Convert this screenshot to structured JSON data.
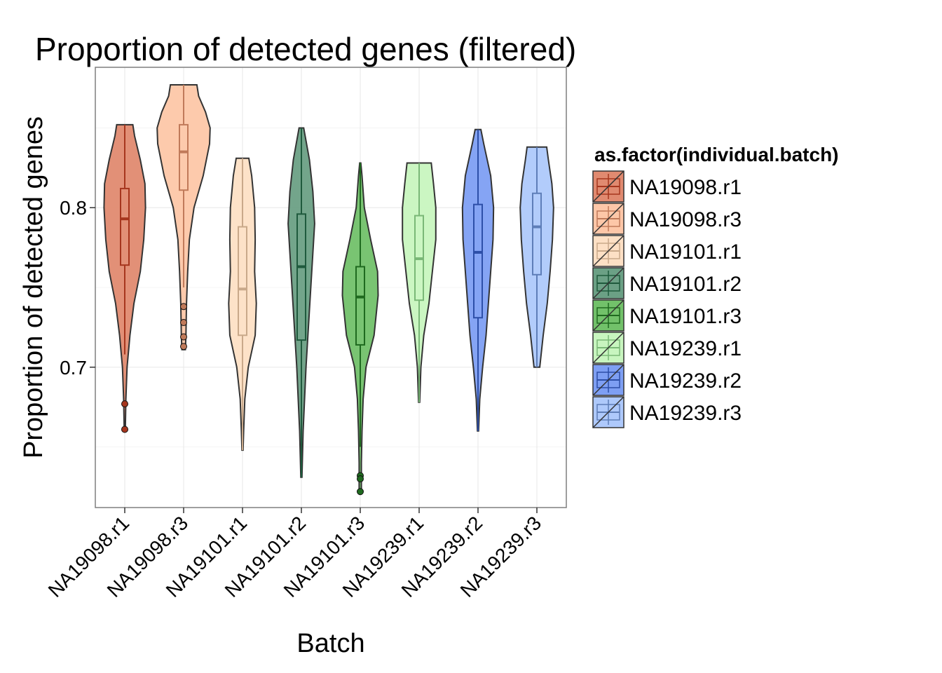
{
  "chart_data": {
    "type": "violin",
    "title": "Proportion of detected genes (filtered)",
    "xlabel": "Batch",
    "ylabel": "Proportion of detected genes",
    "ylim": [
      0.612,
      0.888
    ],
    "yticks": [
      0.7,
      0.8
    ],
    "yticklabels": [
      "0.7",
      "0.8"
    ],
    "grid": true,
    "legend": {
      "title": "as.factor(individual.batch)",
      "position": "right"
    },
    "categories": [
      "NA19098.r1",
      "NA19098.r3",
      "NA19101.r1",
      "NA19101.r2",
      "NA19101.r3",
      "NA19239.r1",
      "NA19239.r2",
      "NA19239.r3"
    ],
    "series": [
      {
        "name": "NA19098.r1",
        "color": "#e08a70",
        "box_color": "#a6361e",
        "min": 0.661,
        "max": 0.852,
        "q1": 0.764,
        "median": 0.793,
        "q3": 0.812,
        "whisker_low": 0.708,
        "whisker_high": 0.852,
        "outliers": [
          0.677,
          0.661
        ],
        "density": [
          [
            0.661,
            0.01
          ],
          [
            0.68,
            0.02
          ],
          [
            0.7,
            0.04
          ],
          [
            0.72,
            0.09
          ],
          [
            0.74,
            0.16
          ],
          [
            0.76,
            0.27
          ],
          [
            0.78,
            0.33
          ],
          [
            0.8,
            0.36
          ],
          [
            0.815,
            0.35
          ],
          [
            0.83,
            0.27
          ],
          [
            0.845,
            0.17
          ],
          [
            0.852,
            0.14
          ]
        ]
      },
      {
        "name": "NA19098.r3",
        "color": "#fdc7a8",
        "box_color": "#c07a5a",
        "min": 0.711,
        "max": 0.877,
        "q1": 0.811,
        "median": 0.835,
        "q3": 0.852,
        "whisker_low": 0.75,
        "whisker_high": 0.877,
        "outliers": [
          0.738,
          0.728,
          0.719,
          0.713
        ],
        "density": [
          [
            0.711,
            0.03
          ],
          [
            0.72,
            0.04
          ],
          [
            0.74,
            0.05
          ],
          [
            0.76,
            0.07
          ],
          [
            0.78,
            0.1
          ],
          [
            0.8,
            0.18
          ],
          [
            0.82,
            0.34
          ],
          [
            0.84,
            0.45
          ],
          [
            0.85,
            0.46
          ],
          [
            0.86,
            0.38
          ],
          [
            0.87,
            0.26
          ],
          [
            0.877,
            0.23
          ]
        ]
      },
      {
        "name": "NA19101.r1",
        "color": "#fde0c5",
        "box_color": "#c9a98a",
        "min": 0.648,
        "max": 0.831,
        "q1": 0.72,
        "median": 0.749,
        "q3": 0.788,
        "whisker_low": 0.648,
        "whisker_high": 0.831,
        "outliers": [],
        "density": [
          [
            0.648,
            0.01
          ],
          [
            0.66,
            0.02
          ],
          [
            0.68,
            0.04
          ],
          [
            0.7,
            0.1
          ],
          [
            0.72,
            0.22
          ],
          [
            0.74,
            0.24
          ],
          [
            0.76,
            0.21
          ],
          [
            0.78,
            0.22
          ],
          [
            0.8,
            0.21
          ],
          [
            0.82,
            0.16
          ],
          [
            0.831,
            0.11
          ]
        ]
      },
      {
        "name": "NA19101.r2",
        "color": "#6ba085",
        "box_color": "#1f5a3d",
        "min": 0.631,
        "max": 0.85,
        "q1": 0.717,
        "median": 0.763,
        "q3": 0.796,
        "whisker_low": 0.631,
        "whisker_high": 0.85,
        "outliers": [],
        "density": [
          [
            0.631,
            0.01
          ],
          [
            0.66,
            0.03
          ],
          [
            0.7,
            0.08
          ],
          [
            0.73,
            0.13
          ],
          [
            0.76,
            0.18
          ],
          [
            0.79,
            0.23
          ],
          [
            0.81,
            0.2
          ],
          [
            0.83,
            0.14
          ],
          [
            0.85,
            0.04
          ]
        ]
      },
      {
        "name": "NA19101.r3",
        "color": "#72c16a",
        "box_color": "#1f6a1f",
        "min": 0.622,
        "max": 0.828,
        "q1": 0.714,
        "median": 0.744,
        "q3": 0.763,
        "whisker_low": 0.65,
        "whisker_high": 0.828,
        "outliers": [
          0.632,
          0.63,
          0.622
        ],
        "density": [
          [
            0.622,
            0.02
          ],
          [
            0.64,
            0.02
          ],
          [
            0.66,
            0.03
          ],
          [
            0.68,
            0.05
          ],
          [
            0.7,
            0.1
          ],
          [
            0.72,
            0.24
          ],
          [
            0.745,
            0.31
          ],
          [
            0.76,
            0.3
          ],
          [
            0.78,
            0.18
          ],
          [
            0.8,
            0.07
          ],
          [
            0.82,
            0.03
          ],
          [
            0.828,
            0.01
          ]
        ]
      },
      {
        "name": "NA19239.r1",
        "color": "#c8f5bf",
        "box_color": "#7ab877",
        "min": 0.678,
        "max": 0.828,
        "q1": 0.742,
        "median": 0.768,
        "q3": 0.795,
        "whisker_low": 0.678,
        "whisker_high": 0.828,
        "outliers": [],
        "density": [
          [
            0.678,
            0.01
          ],
          [
            0.7,
            0.03
          ],
          [
            0.72,
            0.08
          ],
          [
            0.74,
            0.17
          ],
          [
            0.76,
            0.23
          ],
          [
            0.78,
            0.29
          ],
          [
            0.8,
            0.29
          ],
          [
            0.815,
            0.25
          ],
          [
            0.828,
            0.21
          ]
        ]
      },
      {
        "name": "NA19239.r2",
        "color": "#7e9ff3",
        "box_color": "#2d4fa8",
        "min": 0.66,
        "max": 0.849,
        "q1": 0.731,
        "median": 0.772,
        "q3": 0.802,
        "whisker_low": 0.66,
        "whisker_high": 0.849,
        "outliers": [],
        "density": [
          [
            0.66,
            0.01
          ],
          [
            0.68,
            0.03
          ],
          [
            0.7,
            0.08
          ],
          [
            0.72,
            0.14
          ],
          [
            0.74,
            0.18
          ],
          [
            0.76,
            0.22
          ],
          [
            0.78,
            0.26
          ],
          [
            0.8,
            0.27
          ],
          [
            0.82,
            0.22
          ],
          [
            0.84,
            0.1
          ],
          [
            0.849,
            0.05
          ]
        ]
      },
      {
        "name": "NA19239.r3",
        "color": "#aec9fb",
        "box_color": "#5e7eb8",
        "min": 0.7,
        "max": 0.838,
        "q1": 0.758,
        "median": 0.788,
        "q3": 0.809,
        "whisker_low": 0.7,
        "whisker_high": 0.838,
        "outliers": [],
        "density": [
          [
            0.7,
            0.05
          ],
          [
            0.72,
            0.11
          ],
          [
            0.74,
            0.18
          ],
          [
            0.76,
            0.23
          ],
          [
            0.78,
            0.27
          ],
          [
            0.8,
            0.29
          ],
          [
            0.815,
            0.26
          ],
          [
            0.83,
            0.2
          ],
          [
            0.838,
            0.17
          ]
        ]
      }
    ]
  }
}
